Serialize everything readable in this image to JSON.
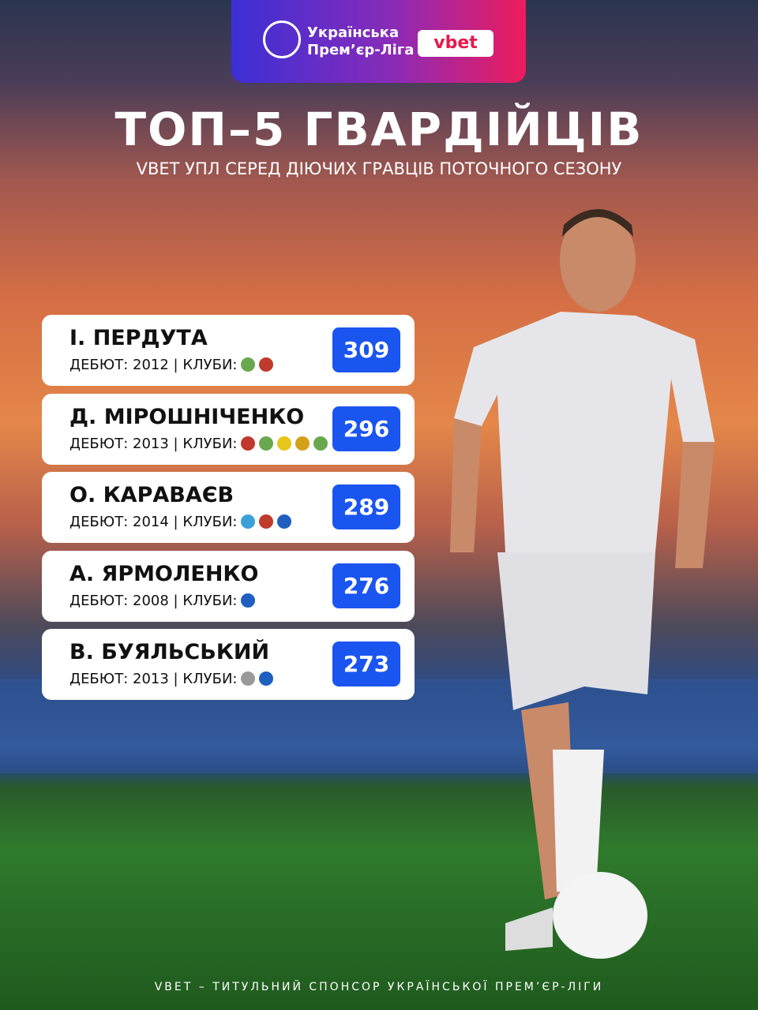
{
  "header": {
    "league_line1": "Українська",
    "league_line2": "Прем’єр-Ліга",
    "sponsor": "vbet"
  },
  "title": "ТОП–5 ГВАРДІЙЦІВ",
  "subtitle": "VBET УПЛ СЕРЕД ДІЮЧИХ ГРАВЦІВ ПОТОЧНОГО СЕЗОНУ",
  "rows": [
    {
      "name": "І. ПЕРДУТА",
      "details": "ДЕБЮТ: 2012 | КЛУБИ:",
      "games": "309"
    },
    {
      "name": "Д. МІРОШНІЧЕНКО",
      "details": "ДЕБЮТ: 2013 | КЛУБИ:",
      "games": "296"
    },
    {
      "name": "О. КАРАВАЄВ",
      "details": "ДЕБЮТ: 2014 | КЛУБИ:",
      "games": "289"
    },
    {
      "name": "А. ЯРМОЛЕНКО",
      "details": "ДЕБЮТ: 2008 | КЛУБИ:",
      "games": "276"
    },
    {
      "name": "В. БУЯЛЬСЬКИЙ",
      "details": "ДЕБЮТ: 2013 | КЛУБИ:",
      "games": "273"
    }
  ],
  "footer": "VBET – ТИТУЛЬНИЙ СПОНСОР УКРАЇНСЬКОЇ ПРЕМ’ЄР-ЛІГИ"
}
